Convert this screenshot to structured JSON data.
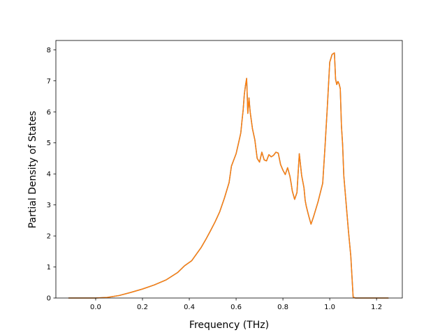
{
  "chart_data": {
    "type": "line",
    "title": "",
    "xlabel": "Frequency (THz)",
    "ylabel": "Partial Density of States",
    "xlim": [
      -0.17,
      1.31
    ],
    "ylim": [
      0,
      8.3
    ],
    "xticks": [
      0.0,
      0.2,
      0.4,
      0.6,
      0.8,
      1.0,
      1.2
    ],
    "xtick_labels": [
      "0.0",
      "0.2",
      "0.4",
      "0.6",
      "0.8",
      "1.0",
      "1.2"
    ],
    "yticks": [
      0,
      1,
      2,
      3,
      4,
      5,
      6,
      7,
      8
    ],
    "ytick_labels": [
      "0",
      "1",
      "2",
      "3",
      "4",
      "5",
      "6",
      "7",
      "8"
    ],
    "grid": false,
    "legend": "none",
    "series": [
      {
        "color": "#1f77b4",
        "x": [
          -0.115,
          0.0,
          0.05,
          0.1,
          0.15,
          0.2,
          0.25,
          0.3,
          0.35,
          0.38,
          0.41,
          0.43,
          0.45,
          0.47,
          0.49,
          0.51,
          0.53,
          0.55,
          0.57,
          0.58,
          0.59,
          0.6,
          0.61,
          0.62,
          0.625,
          0.63,
          0.635,
          0.64,
          0.645,
          0.65,
          0.655,
          0.66,
          0.67,
          0.68,
          0.69,
          0.7,
          0.71,
          0.72,
          0.73,
          0.74,
          0.75,
          0.76,
          0.77,
          0.78,
          0.79,
          0.8,
          0.81,
          0.82,
          0.83,
          0.835,
          0.84,
          0.85,
          0.86,
          0.87,
          0.88,
          0.89,
          0.895,
          0.9,
          0.91,
          0.92,
          0.93,
          0.94,
          0.95,
          0.96,
          0.97,
          0.98,
          0.99,
          1.0,
          1.01,
          1.02,
          1.025,
          1.03,
          1.035,
          1.04,
          1.045,
          1.05,
          1.055,
          1.06,
          1.07,
          1.08,
          1.09,
          1.1,
          1.11,
          1.12,
          1.125,
          1.13,
          1.14,
          1.2,
          1.25
        ],
        "values": [
          0.0,
          0.0,
          0.02,
          0.08,
          0.18,
          0.29,
          0.42,
          0.58,
          0.82,
          1.04,
          1.2,
          1.41,
          1.62,
          1.88,
          2.16,
          2.45,
          2.78,
          3.22,
          3.72,
          4.25,
          4.45,
          4.65,
          4.98,
          5.32,
          5.7,
          6.05,
          6.55,
          6.85,
          7.08,
          5.95,
          6.45,
          6.0,
          5.45,
          5.1,
          4.5,
          4.38,
          4.7,
          4.45,
          4.42,
          4.62,
          4.55,
          4.6,
          4.7,
          4.67,
          4.3,
          4.12,
          3.98,
          4.2,
          3.92,
          3.7,
          3.45,
          3.18,
          3.4,
          4.65,
          3.95,
          3.55,
          3.15,
          2.95,
          2.65,
          2.38,
          2.6,
          2.85,
          3.1,
          3.4,
          3.7,
          4.9,
          6.2,
          7.6,
          7.85,
          7.9,
          7.05,
          6.88,
          6.98,
          6.9,
          6.75,
          5.55,
          4.95,
          3.95,
          3.05,
          2.15,
          1.35,
          0.03,
          0.0,
          0.0,
          0.0,
          0.0,
          0.0,
          0.0,
          0.0
        ]
      },
      {
        "color": "#ff7f0e",
        "x": [
          -0.115,
          0.0,
          0.05,
          0.1,
          0.15,
          0.2,
          0.25,
          0.3,
          0.35,
          0.38,
          0.41,
          0.43,
          0.45,
          0.47,
          0.49,
          0.51,
          0.53,
          0.55,
          0.57,
          0.58,
          0.59,
          0.6,
          0.61,
          0.62,
          0.625,
          0.63,
          0.635,
          0.64,
          0.645,
          0.65,
          0.655,
          0.66,
          0.67,
          0.68,
          0.69,
          0.7,
          0.71,
          0.72,
          0.73,
          0.74,
          0.75,
          0.76,
          0.77,
          0.78,
          0.79,
          0.8,
          0.81,
          0.82,
          0.83,
          0.835,
          0.84,
          0.85,
          0.86,
          0.87,
          0.88,
          0.89,
          0.895,
          0.9,
          0.91,
          0.92,
          0.93,
          0.94,
          0.95,
          0.96,
          0.97,
          0.98,
          0.99,
          1.0,
          1.01,
          1.02,
          1.025,
          1.03,
          1.035,
          1.04,
          1.045,
          1.05,
          1.055,
          1.06,
          1.07,
          1.08,
          1.09,
          1.1,
          1.11,
          1.12,
          1.125,
          1.13,
          1.14,
          1.2,
          1.25
        ],
        "values": [
          0.0,
          0.0,
          0.02,
          0.08,
          0.18,
          0.29,
          0.42,
          0.58,
          0.82,
          1.04,
          1.2,
          1.41,
          1.62,
          1.88,
          2.16,
          2.45,
          2.78,
          3.22,
          3.72,
          4.25,
          4.45,
          4.65,
          4.98,
          5.32,
          5.7,
          6.05,
          6.55,
          6.85,
          7.08,
          5.95,
          6.45,
          6.0,
          5.45,
          5.1,
          4.5,
          4.38,
          4.7,
          4.45,
          4.42,
          4.62,
          4.55,
          4.6,
          4.7,
          4.67,
          4.3,
          4.12,
          3.98,
          4.2,
          3.92,
          3.7,
          3.45,
          3.18,
          3.4,
          4.65,
          3.95,
          3.55,
          3.15,
          2.95,
          2.65,
          2.38,
          2.6,
          2.85,
          3.1,
          3.4,
          3.7,
          4.9,
          6.2,
          7.6,
          7.85,
          7.9,
          7.05,
          6.88,
          6.98,
          6.9,
          6.75,
          5.55,
          4.95,
          3.95,
          3.05,
          2.15,
          1.35,
          0.03,
          0.0,
          0.0,
          0.0,
          0.0,
          0.0,
          0.0,
          0.0
        ]
      }
    ]
  }
}
